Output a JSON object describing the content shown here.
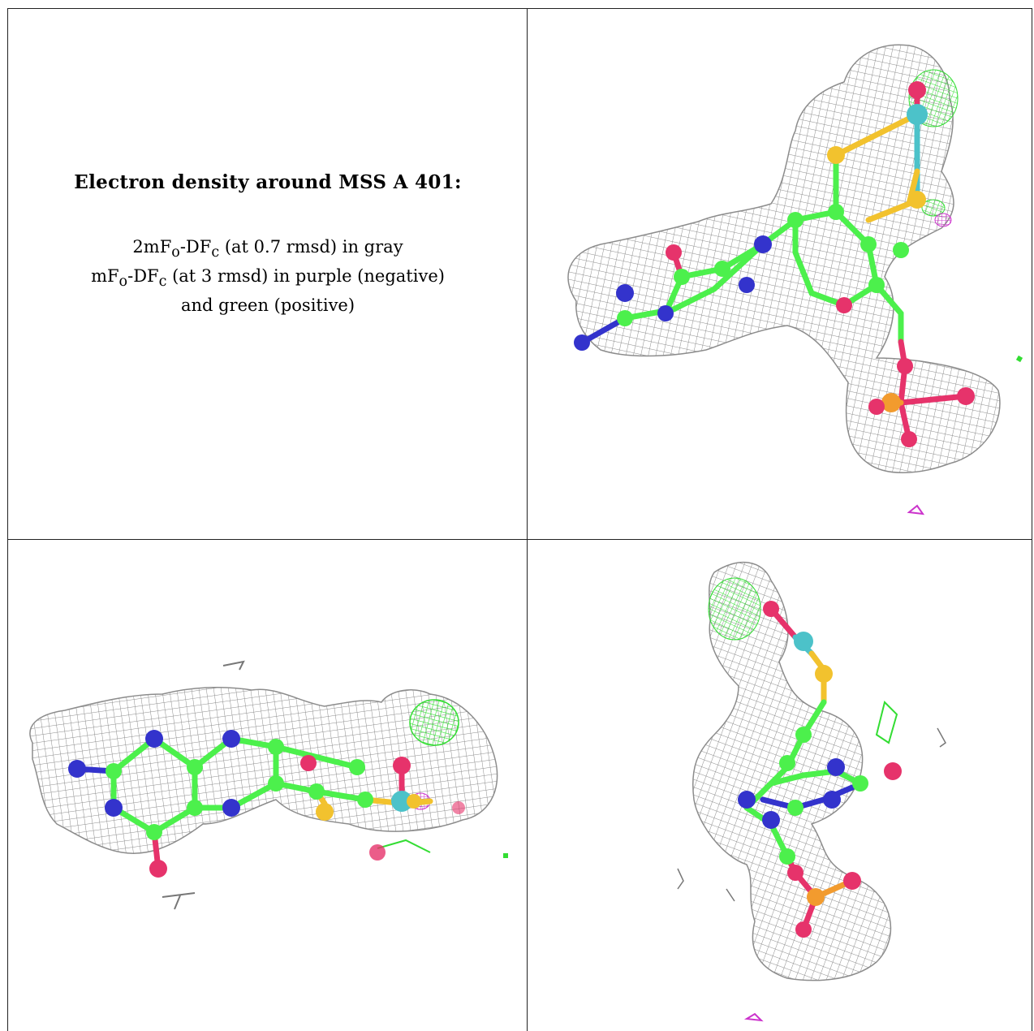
{
  "caption": {
    "title": "Electron density around MSS A 401:",
    "line1": {
      "a": "2mF",
      "a_sub": "o",
      "b": "-DF",
      "b_sub": "c",
      "rest": " (at 0.7 rmsd) in gray"
    },
    "line2": {
      "a": "mF",
      "a_sub": "o",
      "b": "-DF",
      "b_sub": "c",
      "rest": " (at 3 rmsd) in purple (negative)"
    },
    "line3": "and green (positive)"
  },
  "colors": {
    "mesh_2fofc": "#8c8c8c",
    "mesh_positive": "#33dd33",
    "mesh_negative": "#cc33cc",
    "carbon": "#4cf04c",
    "nitrogen": "#3333cc",
    "oxygen": "#e6336b",
    "sulfur": "#f2c22e",
    "phosphorus": "#f29b2e",
    "molybdenum": "#4cc2c9"
  }
}
